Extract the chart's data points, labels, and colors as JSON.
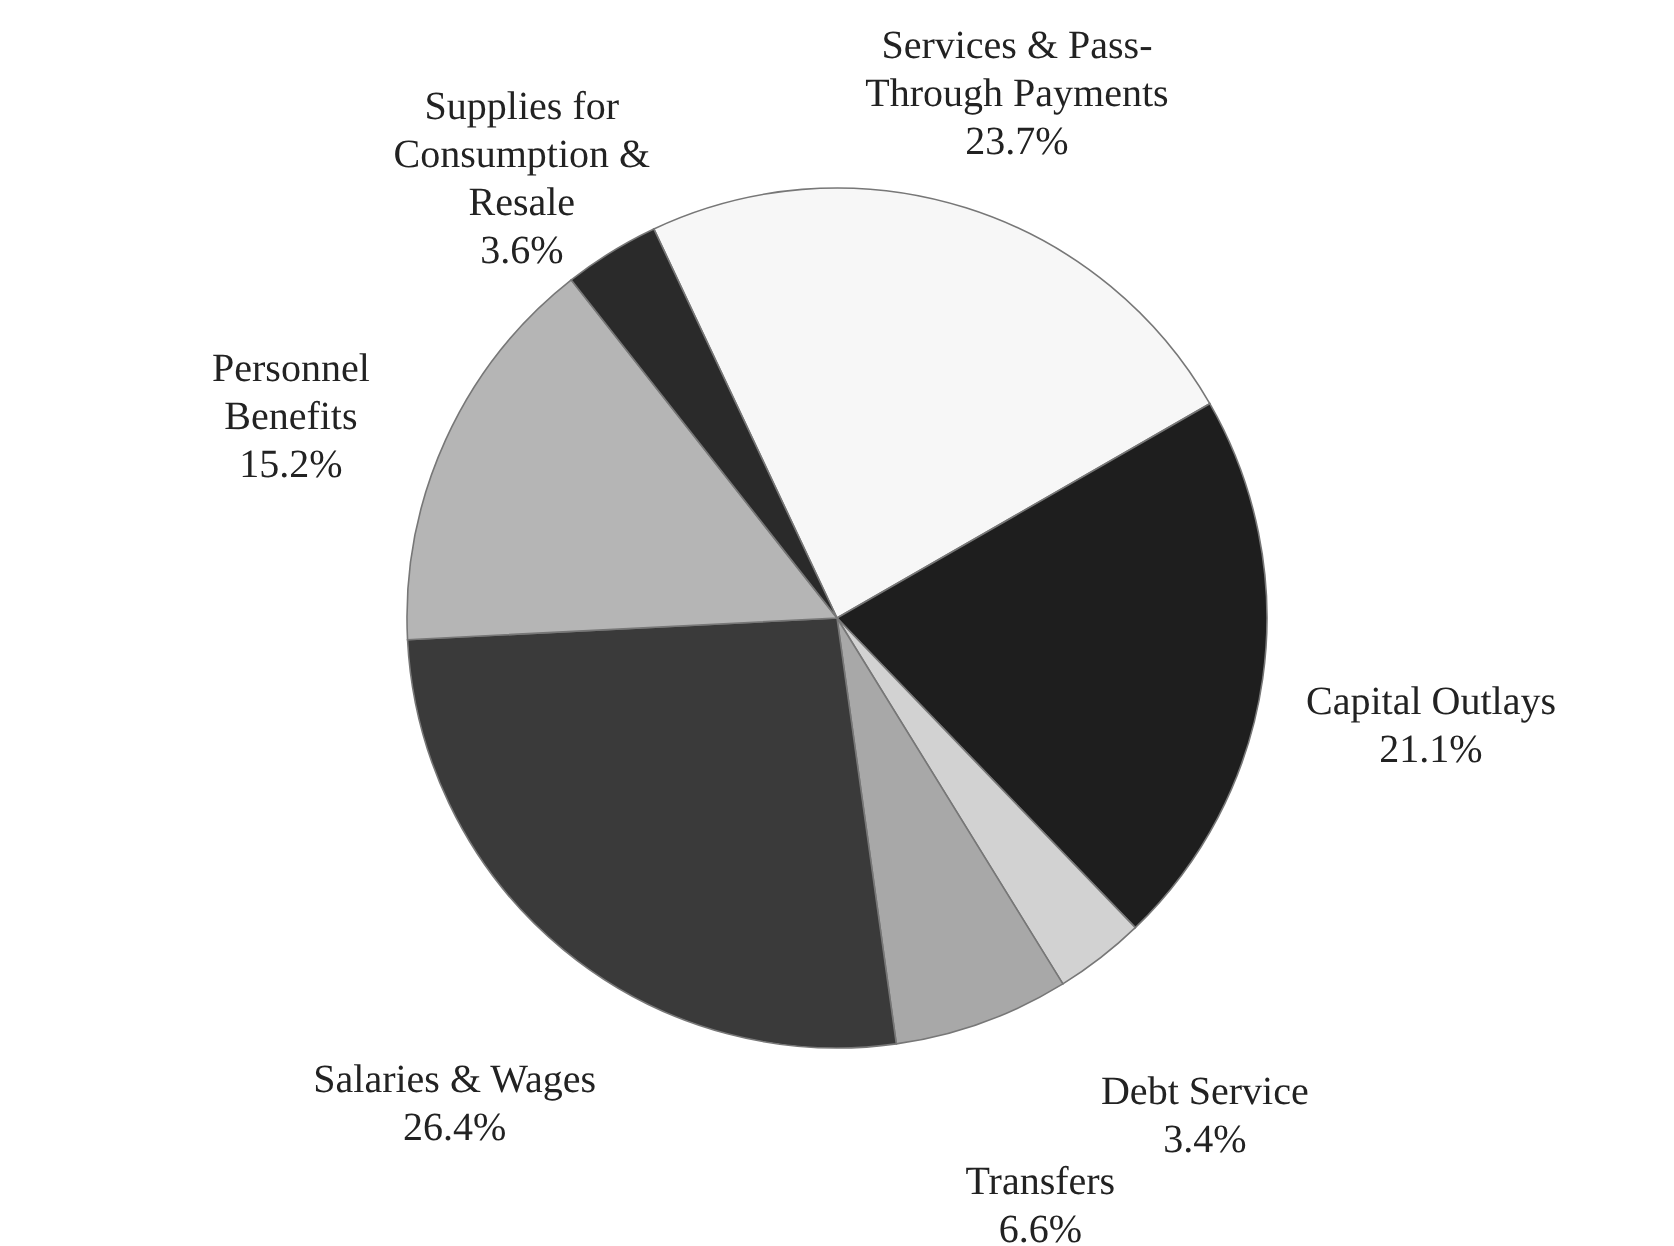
{
  "chart_data": {
    "type": "pie",
    "categories": [
      "Services & Pass-Through Payments",
      "Capital Outlays",
      "Debt Service",
      "Transfers",
      "Salaries & Wages",
      "Personnel Benefits",
      "Supplies for Consumption & Resale"
    ],
    "values": [
      23.7,
      21.1,
      3.4,
      6.6,
      26.4,
      15.2,
      3.6
    ],
    "value_labels": [
      "23.7%",
      "21.1%",
      "3.4%",
      "6.6%",
      "26.4%",
      "15.2%",
      "3.6%"
    ],
    "colors": [
      "#f7f7f7",
      "#1e1e1e",
      "#d2d2d2",
      "#a8a8a8",
      "#3a3a3a",
      "#b5b5b5",
      "#2a2a2a"
    ],
    "legend": false
  }
}
